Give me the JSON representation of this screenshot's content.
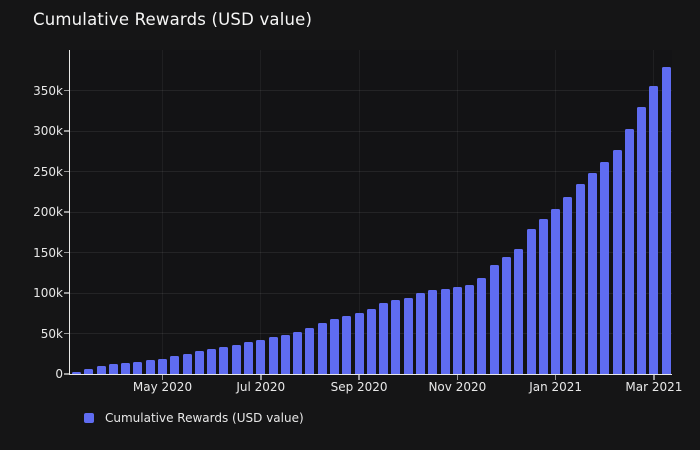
{
  "header": {
    "title": "Cumulative Rewards (USD value)"
  },
  "legend": {
    "items": [
      {
        "label": "Cumulative Rewards (USD value)",
        "color": "#5f6cf1"
      }
    ]
  },
  "chart_data": {
    "type": "bar",
    "title": "Cumulative Rewards (USD value)",
    "unit": "USD",
    "values": [
      3000,
      6000,
      9500,
      12000,
      13500,
      15000,
      17000,
      19000,
      22000,
      25000,
      28500,
      31000,
      33000,
      36000,
      40000,
      42500,
      46000,
      48500,
      52000,
      56500,
      62500,
      68000,
      72000,
      75000,
      80000,
      87500,
      91000,
      94000,
      100000,
      103500,
      105500,
      107500,
      110500,
      118000,
      134000,
      145000,
      154000,
      179000,
      191000,
      204000,
      218000,
      235000,
      248000,
      262000,
      276000,
      302000,
      330000,
      355000,
      379000
    ],
    "x_tick_labels": [
      "May 2020",
      "Jul 2020",
      "Sep 2020",
      "Nov 2020",
      "Jan 2021",
      "Mar 2021"
    ],
    "x_tick_bar_indices": [
      7,
      15,
      23,
      31,
      39,
      47
    ],
    "y_tick_labels": [
      "0",
      "50k",
      "100k",
      "150k",
      "200k",
      "250k",
      "300k",
      "350k"
    ],
    "y_tick_values": [
      0,
      50000,
      100000,
      150000,
      200000,
      250000,
      300000,
      350000
    ],
    "ylim": [
      0,
      400000
    ],
    "grid": true,
    "legend_position": "bottom-left",
    "colors": {
      "bar": "#5f6cf1",
      "axis": "#e9e9e7",
      "background": "#151516",
      "tick_text": "#e8e8e8"
    }
  }
}
